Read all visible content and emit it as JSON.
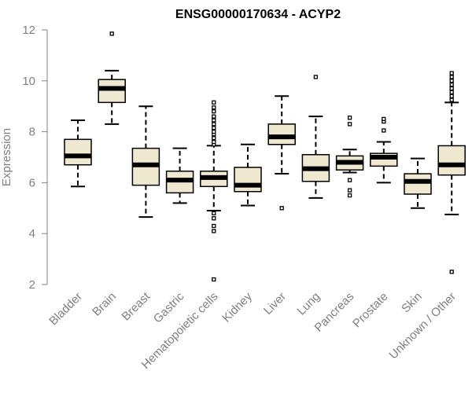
{
  "chart_data": {
    "type": "boxplot",
    "title": "ENSG00000170634 - ACYP2",
    "xlabel": "",
    "ylabel": "Expression",
    "ylim": [
      2,
      12
    ],
    "yticks": [
      2,
      4,
      6,
      8,
      10,
      12
    ],
    "box_fill": "#efe9d2",
    "box_stroke": "#000000",
    "axis_color": "#808080",
    "categories": [
      "Bladder",
      "Brain",
      "Breast",
      "Gastric",
      "Hematopoietic cells",
      "Kidney",
      "Liver",
      "Lung",
      "Pancreas",
      "Prostate",
      "Skin",
      "Unknown / Other"
    ],
    "boxes": [
      {
        "whisker_low": 5.85,
        "q1": 6.7,
        "median": 7.05,
        "q3": 7.7,
        "whisker_high": 8.45,
        "outliers": []
      },
      {
        "whisker_low": 8.3,
        "q1": 9.15,
        "median": 9.7,
        "q3": 10.05,
        "whisker_high": 10.4,
        "outliers": [
          11.85
        ]
      },
      {
        "whisker_low": 4.65,
        "q1": 5.9,
        "median": 6.7,
        "q3": 7.35,
        "whisker_high": 9.0,
        "outliers": []
      },
      {
        "whisker_low": 5.2,
        "q1": 5.6,
        "median": 6.1,
        "q3": 6.45,
        "whisker_high": 7.35,
        "outliers": []
      },
      {
        "whisker_low": 4.9,
        "q1": 5.85,
        "median": 6.2,
        "q3": 6.45,
        "whisker_high": 7.45,
        "outliers": [
          2.2,
          4.1,
          4.3,
          4.6,
          4.8,
          7.5,
          7.6,
          7.75,
          7.9,
          8.0,
          8.15,
          8.3,
          8.45,
          8.6,
          8.8,
          8.95,
          9.15
        ]
      },
      {
        "whisker_low": 5.1,
        "q1": 5.65,
        "median": 5.9,
        "q3": 6.6,
        "whisker_high": 7.5,
        "outliers": []
      },
      {
        "whisker_low": 6.35,
        "q1": 7.5,
        "median": 7.8,
        "q3": 8.3,
        "whisker_high": 9.4,
        "outliers": [
          5.0
        ]
      },
      {
        "whisker_low": 5.4,
        "q1": 6.05,
        "median": 6.55,
        "q3": 7.1,
        "whisker_high": 8.6,
        "outliers": [
          10.15
        ]
      },
      {
        "whisker_low": 6.4,
        "q1": 6.5,
        "median": 6.8,
        "q3": 7.05,
        "whisker_high": 7.3,
        "outliers": [
          5.5,
          5.7,
          6.1,
          8.3,
          8.55
        ]
      },
      {
        "whisker_low": 6.0,
        "q1": 6.65,
        "median": 7.0,
        "q3": 7.15,
        "whisker_high": 7.6,
        "outliers": [
          8.05,
          8.4,
          8.5
        ]
      },
      {
        "whisker_low": 5.0,
        "q1": 5.55,
        "median": 6.05,
        "q3": 6.35,
        "whisker_high": 6.95,
        "outliers": []
      },
      {
        "whisker_low": 4.75,
        "q1": 6.3,
        "median": 6.7,
        "q3": 7.45,
        "whisker_high": 9.15,
        "outliers": [
          2.5,
          9.25,
          9.4,
          9.55,
          9.7,
          9.85,
          10.0,
          10.15,
          10.3
        ]
      }
    ]
  }
}
